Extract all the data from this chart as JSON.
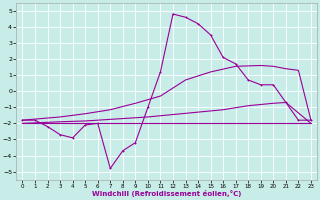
{
  "xlabel": "Windchill (Refroidissement éolien,°C)",
  "background_color": "#c8ece8",
  "line_color": "#990099",
  "grid_color": "#ffffff",
  "x_ticks": [
    0,
    1,
    2,
    3,
    4,
    5,
    6,
    7,
    8,
    9,
    10,
    11,
    12,
    13,
    14,
    15,
    16,
    17,
    18,
    19,
    20,
    21,
    22,
    23
  ],
  "y_ticks": [
    -5,
    -4,
    -3,
    -2,
    -1,
    0,
    1,
    2,
    3,
    4,
    5
  ],
  "xlim": [
    -0.5,
    23.5
  ],
  "ylim": [
    -5.5,
    5.5
  ],
  "series1_x": [
    0,
    1,
    2,
    3,
    4,
    5,
    6,
    7,
    8,
    9,
    10,
    11,
    12,
    13,
    14,
    15,
    16,
    17,
    18,
    19,
    20,
    21,
    22,
    23
  ],
  "series1_y": [
    -2.0,
    -2.0,
    -2.0,
    -2.0,
    -2.0,
    -2.0,
    -2.0,
    -2.0,
    -2.0,
    -2.0,
    -2.0,
    -2.0,
    -2.0,
    -2.0,
    -2.0,
    -2.0,
    -2.0,
    -2.0,
    -2.0,
    -2.0,
    -2.0,
    -2.0,
    -2.0,
    -2.0
  ],
  "series2_x": [
    0,
    3,
    5,
    7,
    10,
    12,
    14,
    16,
    18,
    20,
    21,
    23
  ],
  "series2_y": [
    -2.0,
    -1.9,
    -1.85,
    -1.75,
    -1.6,
    -1.45,
    -1.3,
    -1.15,
    -0.9,
    -0.75,
    -0.7,
    -2.0
  ],
  "series3_x": [
    0,
    3,
    5,
    7,
    9,
    11,
    13,
    15,
    17,
    19,
    20,
    21,
    22,
    23
  ],
  "series3_y": [
    -1.8,
    -1.6,
    -1.4,
    -1.15,
    -0.75,
    -0.3,
    0.7,
    1.2,
    1.55,
    1.6,
    1.55,
    1.4,
    1.3,
    -1.8
  ],
  "series4_x": [
    0,
    1,
    2,
    3,
    4,
    5,
    6,
    7,
    8,
    9,
    10,
    11,
    12,
    13,
    14,
    15,
    16,
    17,
    18,
    19,
    20,
    21,
    22,
    23
  ],
  "series4_y": [
    -1.8,
    -1.8,
    -2.2,
    -2.7,
    -2.9,
    -2.1,
    -2.0,
    -4.8,
    -3.7,
    -3.2,
    -1.0,
    1.2,
    4.8,
    4.6,
    4.2,
    3.5,
    2.1,
    1.7,
    0.7,
    0.4,
    0.4,
    -0.7,
    -1.8,
    -1.8
  ]
}
